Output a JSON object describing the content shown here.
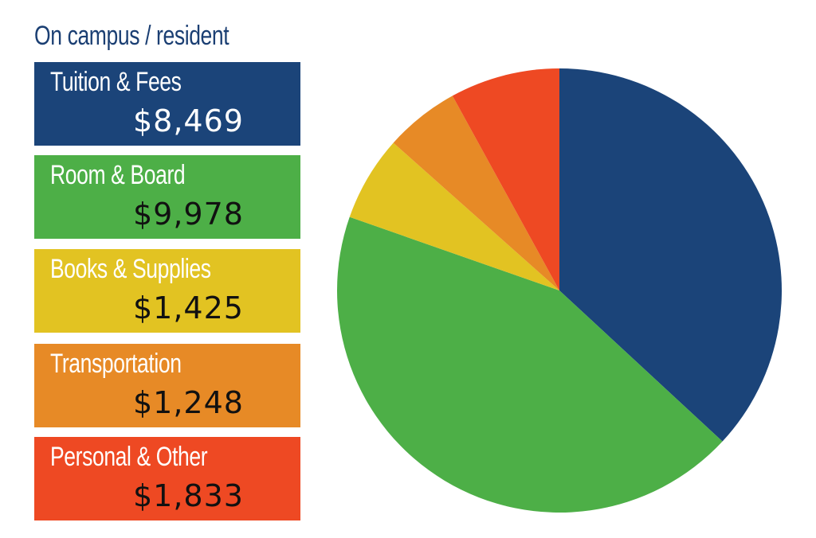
{
  "chart_data": {
    "type": "pie",
    "title": "On campus / resident",
    "categories": [
      "Tuition & Fees",
      "Room & Board",
      "Books & Supplies",
      "Transportation",
      "Personal & Other"
    ],
    "values": [
      8469,
      9978,
      1425,
      1248,
      1833
    ],
    "value_labels": [
      "$8,469",
      "$9,978",
      "$1,425",
      "$1,248",
      "$1,833"
    ],
    "colors": [
      "#1b4479",
      "#4daf47",
      "#e2c322",
      "#e78a26",
      "#ee4923"
    ],
    "value_text_colors": [
      "#ffffff",
      "#111111",
      "#111111",
      "#111111",
      "#111111"
    ],
    "start_angle": "top",
    "direction": "clockwise",
    "legend_position": "left"
  }
}
